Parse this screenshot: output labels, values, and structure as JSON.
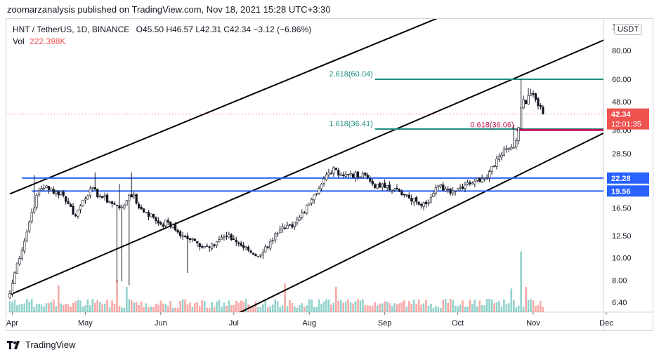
{
  "publisher_line": "zoomarzanalysis published on TradingView.com, Nov 18, 2021 15:28 UTC+3:30",
  "legend": {
    "symbol": "HNT / TetherUS, 1D, BINANCE",
    "ohlc": "O45.50 H46.57 L42.31 C42.34 −3.12 (−6.86%)",
    "vol_label": "Vol",
    "vol_value": "222.398K"
  },
  "currency_button": "USDT",
  "footer": {
    "brand": "TradingView",
    "logo_icon": "tradingview-logo-icon"
  },
  "colors": {
    "up": "#26a69a",
    "down": "#ef5350",
    "channel": "#000000",
    "fib": "#1e8c7e",
    "support": "#2962ff",
    "pink": "#c2185b",
    "tag_price": "#ef5350"
  },
  "chart_data": {
    "type": "candlestick",
    "title": "HNT / TetherUS, 1D, BINANCE",
    "scale": "log",
    "ylim": [
      5.8,
      110
    ],
    "y_ticks": [
      "6.40",
      "8.00",
      "10.00",
      "12.50",
      "16.50",
      "22.28",
      "28.50",
      "36.00",
      "48.00",
      "60.00",
      "80.00"
    ],
    "x_ticks": [
      {
        "label": "Apr",
        "day": 1
      },
      {
        "label": "May",
        "day": 31
      },
      {
        "label": "Jun",
        "day": 62
      },
      {
        "label": "Jul",
        "day": 92
      },
      {
        "label": "Aug",
        "day": 123
      },
      {
        "label": "Sep",
        "day": 154
      },
      {
        "label": "Oct",
        "day": 184
      },
      {
        "label": "Nov",
        "day": 215
      },
      {
        "label": "Dec",
        "day": 245
      }
    ],
    "price_anchors": [
      [
        0,
        7.0
      ],
      [
        3,
        9.5
      ],
      [
        6,
        11.8
      ],
      [
        9,
        15.8
      ],
      [
        12,
        19.6
      ],
      [
        15,
        20.6
      ],
      [
        18,
        19.1
      ],
      [
        21,
        19.5
      ],
      [
        24,
        17.2
      ],
      [
        27,
        15.2
      ],
      [
        30,
        17.8
      ],
      [
        33,
        20.0
      ],
      [
        37,
        18.6
      ],
      [
        41,
        17.6
      ],
      [
        45,
        16.5
      ],
      [
        48,
        17.8
      ],
      [
        51,
        18.8
      ],
      [
        53,
        16.5
      ],
      [
        56,
        15.8
      ],
      [
        59,
        15.0
      ],
      [
        62,
        14.0
      ],
      [
        65,
        14.3
      ],
      [
        68,
        13.2
      ],
      [
        71,
        12.5
      ],
      [
        74,
        12.0
      ],
      [
        77,
        11.6
      ],
      [
        80,
        11.2
      ],
      [
        83,
        11.5
      ],
      [
        86,
        12.0
      ],
      [
        89,
        12.4
      ],
      [
        92,
        12.0
      ],
      [
        95,
        11.3
      ],
      [
        98,
        10.8
      ],
      [
        101,
        10.2
      ],
      [
        104,
        10.6
      ],
      [
        107,
        11.8
      ],
      [
        110,
        12.8
      ],
      [
        113,
        13.4
      ],
      [
        116,
        13.6
      ],
      [
        119,
        15.0
      ],
      [
        122,
        17.0
      ],
      [
        125,
        18.8
      ],
      [
        128,
        21.0
      ],
      [
        131,
        23.5
      ],
      [
        134,
        24.2
      ],
      [
        137,
        22.8
      ],
      [
        140,
        23.3
      ],
      [
        143,
        22.5
      ],
      [
        146,
        22.9
      ],
      [
        149,
        21.0
      ],
      [
        152,
        20.3
      ],
      [
        155,
        20.7
      ],
      [
        158,
        20.0
      ],
      [
        161,
        18.8
      ],
      [
        164,
        18.2
      ],
      [
        167,
        17.6
      ],
      [
        170,
        17.4
      ],
      [
        173,
        18.3
      ],
      [
        176,
        20.6
      ],
      [
        179,
        20.0
      ],
      [
        182,
        19.6
      ],
      [
        185,
        20.3
      ],
      [
        188,
        21.3
      ],
      [
        191,
        21.6
      ],
      [
        194,
        22.2
      ],
      [
        197,
        23.8
      ],
      [
        200,
        27.0
      ],
      [
        203,
        29.8
      ],
      [
        206,
        30.3
      ],
      [
        208,
        32.5
      ],
      [
        209,
        37.0
      ],
      [
        210,
        45.0
      ],
      [
        211,
        49.0
      ],
      [
        212,
        47.0
      ],
      [
        213,
        51.0
      ],
      [
        214,
        52.0
      ],
      [
        215,
        51.5
      ],
      [
        216,
        49.0
      ],
      [
        217,
        46.0
      ],
      [
        218,
        45.5
      ],
      [
        219,
        42.34
      ]
    ],
    "extra_wicks": [
      {
        "day": 10,
        "high": 23.0
      },
      {
        "day": 35,
        "high": 23.6
      },
      {
        "day": 44,
        "high": 7.8
      },
      {
        "day": 45,
        "high": 21.0
      },
      {
        "day": 46,
        "low": 7.9
      },
      {
        "day": 49,
        "low": 7.6
      },
      {
        "day": 50,
        "high": 23.6
      },
      {
        "day": 73,
        "low": 8.6
      },
      {
        "day": 207,
        "high": 38.0
      },
      {
        "day": 210,
        "high": 60.0
      },
      {
        "day": 213,
        "high": 55.0
      },
      {
        "day": 214,
        "high": 54.5
      }
    ],
    "volume_spikes": [
      {
        "day": 20,
        "v": 1.6
      },
      {
        "day": 44,
        "v": 1.9
      },
      {
        "day": 48,
        "v": 1.5
      },
      {
        "day": 113,
        "v": 1.7
      },
      {
        "day": 134,
        "v": 1.5
      },
      {
        "day": 206,
        "v": 1.4
      },
      {
        "day": 210,
        "v": 3.6
      },
      {
        "day": 212,
        "v": 1.5
      }
    ],
    "channels": [
      {
        "name": "upper",
        "p1": {
          "day": 0,
          "price": 19.0
        },
        "p2": {
          "day": 244,
          "price": 220.0
        }
      },
      {
        "name": "middle",
        "p1": {
          "day": 0,
          "price": 6.9
        },
        "p2": {
          "day": 244,
          "price": 89.0
        }
      },
      {
        "name": "lower",
        "p1": {
          "day": 64,
          "price": 4.0
        },
        "p2": {
          "day": 244,
          "price": 35.0
        }
      }
    ],
    "fib_levels": [
      {
        "label": "2.618(60.04)",
        "price": 60.04,
        "from_day": 150,
        "color": "#1e8c7e"
      },
      {
        "label": "1.618(36.41)",
        "price": 36.41,
        "from_day": 150,
        "color": "#1e8c7e"
      },
      {
        "label": "0.618(36.06)",
        "price": 36.06,
        "from_day": 208,
        "color": "#c2185b"
      }
    ],
    "horizontal_lines": [
      {
        "label": "22.28",
        "price": 22.28,
        "from_day": 5
      },
      {
        "label": "19.56",
        "price": 19.56,
        "from_day": 9
      }
    ],
    "current_price": {
      "label": "42.34",
      "countdown": "12:01:35",
      "price": 42.34
    },
    "price_axis_top_label": "1"
  }
}
